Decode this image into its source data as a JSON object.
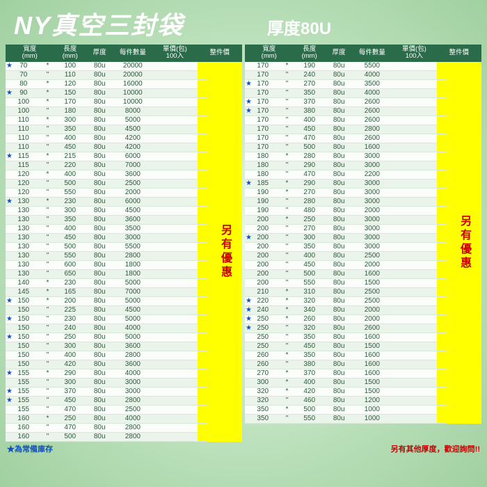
{
  "title": "NY真空三封袋",
  "subtitle": "厚度80U",
  "headers": {
    "width": "寬度\n(mm)",
    "length": "長度\n(mm)",
    "thickness": "厚度",
    "qty": "每件數量",
    "price": "單價(包)\n100入",
    "offer": "整件價"
  },
  "offer_text": "另有優惠",
  "footnote_left": "★為常備庫存",
  "footnote_right": "另有其他厚度，歡迎詢問!!",
  "left_rows": [
    {
      "s": 1,
      "w": "70",
      "l": "100",
      "t": "80u",
      "q": "20000"
    },
    {
      "s": 0,
      "w": "70",
      "l": "110",
      "t": "80u",
      "q": "20000"
    },
    {
      "s": 0,
      "w": "80",
      "l": "120",
      "t": "80u",
      "q": "16000"
    },
    {
      "s": 1,
      "w": "90",
      "l": "150",
      "t": "80u",
      "q": "10000"
    },
    {
      "s": 0,
      "w": "100",
      "l": "170",
      "t": "80u",
      "q": "10000"
    },
    {
      "s": 0,
      "w": "100",
      "l": "180",
      "t": "80u",
      "q": "8000"
    },
    {
      "s": 0,
      "w": "110",
      "l": "300",
      "t": "80u",
      "q": "5000"
    },
    {
      "s": 0,
      "w": "110",
      "l": "350",
      "t": "80u",
      "q": "4500"
    },
    {
      "s": 0,
      "w": "110",
      "l": "400",
      "t": "80u",
      "q": "4200"
    },
    {
      "s": 0,
      "w": "110",
      "l": "450",
      "t": "80u",
      "q": "4200"
    },
    {
      "s": 1,
      "w": "115",
      "l": "215",
      "t": "80u",
      "q": "6000"
    },
    {
      "s": 0,
      "w": "115",
      "l": "220",
      "t": "80u",
      "q": "7000"
    },
    {
      "s": 0,
      "w": "120",
      "l": "400",
      "t": "80u",
      "q": "3600"
    },
    {
      "s": 0,
      "w": "120",
      "l": "500",
      "t": "80u",
      "q": "2500"
    },
    {
      "s": 0,
      "w": "120",
      "l": "550",
      "t": "80u",
      "q": "2000"
    },
    {
      "s": 1,
      "w": "130",
      "l": "230",
      "t": "80u",
      "q": "6000"
    },
    {
      "s": 0,
      "w": "130",
      "l": "300",
      "t": "80u",
      "q": "4500"
    },
    {
      "s": 0,
      "w": "130",
      "l": "350",
      "t": "80u",
      "q": "3600"
    },
    {
      "s": 0,
      "w": "130",
      "l": "400",
      "t": "80u",
      "q": "3500"
    },
    {
      "s": 0,
      "w": "130",
      "l": "450",
      "t": "80u",
      "q": "3000"
    },
    {
      "s": 0,
      "w": "130",
      "l": "500",
      "t": "80u",
      "q": "5500"
    },
    {
      "s": 0,
      "w": "130",
      "l": "550",
      "t": "80u",
      "q": "2800"
    },
    {
      "s": 0,
      "w": "130",
      "l": "600",
      "t": "80u",
      "q": "1800"
    },
    {
      "s": 0,
      "w": "130",
      "l": "650",
      "t": "80u",
      "q": "1800"
    },
    {
      "s": 0,
      "w": "140",
      "l": "230",
      "t": "80u",
      "q": "5000"
    },
    {
      "s": 0,
      "w": "145",
      "l": "165",
      "t": "80u",
      "q": "7000"
    },
    {
      "s": 1,
      "w": "150",
      "l": "200",
      "t": "80u",
      "q": "5000"
    },
    {
      "s": 0,
      "w": "150",
      "l": "225",
      "t": "80u",
      "q": "4500"
    },
    {
      "s": 1,
      "w": "150",
      "l": "230",
      "t": "80u",
      "q": "5000"
    },
    {
      "s": 0,
      "w": "150",
      "l": "240",
      "t": "80u",
      "q": "4000"
    },
    {
      "s": 1,
      "w": "150",
      "l": "250",
      "t": "80u",
      "q": "5000"
    },
    {
      "s": 0,
      "w": "150",
      "l": "300",
      "t": "80u",
      "q": "3600"
    },
    {
      "s": 0,
      "w": "150",
      "l": "400",
      "t": "80u",
      "q": "2800"
    },
    {
      "s": 0,
      "w": "150",
      "l": "420",
      "t": "80u",
      "q": "3600"
    },
    {
      "s": 1,
      "w": "155",
      "l": "290",
      "t": "80u",
      "q": "4000"
    },
    {
      "s": 0,
      "w": "155",
      "l": "300",
      "t": "80u",
      "q": "3000"
    },
    {
      "s": 1,
      "w": "155",
      "l": "370",
      "t": "80u",
      "q": "3000"
    },
    {
      "s": 1,
      "w": "155",
      "l": "450",
      "t": "80u",
      "q": "2800"
    },
    {
      "s": 0,
      "w": "155",
      "l": "470",
      "t": "80u",
      "q": "2500"
    },
    {
      "s": 0,
      "w": "160",
      "l": "250",
      "t": "80u",
      "q": "4000"
    },
    {
      "s": 0,
      "w": "160",
      "l": "470",
      "t": "80u",
      "q": "2800"
    },
    {
      "s": 0,
      "w": "160",
      "l": "500",
      "t": "80u",
      "q": "2800"
    }
  ],
  "right_rows": [
    {
      "s": 0,
      "w": "170",
      "l": "190",
      "t": "80u",
      "q": "5500"
    },
    {
      "s": 0,
      "w": "170",
      "l": "240",
      "t": "80u",
      "q": "4000"
    },
    {
      "s": 1,
      "w": "170",
      "l": "270",
      "t": "80u",
      "q": "3500"
    },
    {
      "s": 0,
      "w": "170",
      "l": "350",
      "t": "80u",
      "q": "4000"
    },
    {
      "s": 1,
      "w": "170",
      "l": "370",
      "t": "80u",
      "q": "2600"
    },
    {
      "s": 1,
      "w": "170",
      "l": "380",
      "t": "80u",
      "q": "2600"
    },
    {
      "s": 0,
      "w": "170",
      "l": "400",
      "t": "80u",
      "q": "2600"
    },
    {
      "s": 0,
      "w": "170",
      "l": "450",
      "t": "80u",
      "q": "2800"
    },
    {
      "s": 0,
      "w": "170",
      "l": "470",
      "t": "80u",
      "q": "2600"
    },
    {
      "s": 0,
      "w": "170",
      "l": "500",
      "t": "80u",
      "q": "1600"
    },
    {
      "s": 0,
      "w": "180",
      "l": "280",
      "t": "80u",
      "q": "3000"
    },
    {
      "s": 0,
      "w": "180",
      "l": "290",
      "t": "80u",
      "q": "3000"
    },
    {
      "s": 0,
      "w": "180",
      "l": "470",
      "t": "80u",
      "q": "2200"
    },
    {
      "s": 1,
      "w": "185",
      "l": "290",
      "t": "80u",
      "q": "3000"
    },
    {
      "s": 0,
      "w": "190",
      "l": "270",
      "t": "80u",
      "q": "3000"
    },
    {
      "s": 0,
      "w": "190",
      "l": "280",
      "t": "80u",
      "q": "3000"
    },
    {
      "s": 0,
      "w": "190",
      "l": "480",
      "t": "80u",
      "q": "2000"
    },
    {
      "s": 0,
      "w": "200",
      "l": "250",
      "t": "80u",
      "q": "3000"
    },
    {
      "s": 0,
      "w": "200",
      "l": "270",
      "t": "80u",
      "q": "3000"
    },
    {
      "s": 1,
      "w": "200",
      "l": "300",
      "t": "80u",
      "q": "3000"
    },
    {
      "s": 0,
      "w": "200",
      "l": "350",
      "t": "80u",
      "q": "3000"
    },
    {
      "s": 0,
      "w": "200",
      "l": "400",
      "t": "80u",
      "q": "2500"
    },
    {
      "s": 0,
      "w": "200",
      "l": "450",
      "t": "80u",
      "q": "2000"
    },
    {
      "s": 0,
      "w": "200",
      "l": "500",
      "t": "80u",
      "q": "1600"
    },
    {
      "s": 0,
      "w": "200",
      "l": "550",
      "t": "80u",
      "q": "1500"
    },
    {
      "s": 0,
      "w": "210",
      "l": "310",
      "t": "80u",
      "q": "2500"
    },
    {
      "s": 1,
      "w": "220",
      "l": "320",
      "t": "80u",
      "q": "2500"
    },
    {
      "s": 1,
      "w": "240",
      "l": "340",
      "t": "80u",
      "q": "2000"
    },
    {
      "s": 1,
      "w": "250",
      "l": "260",
      "t": "80u",
      "q": "2000"
    },
    {
      "s": 1,
      "w": "250",
      "l": "320",
      "t": "80u",
      "q": "2600"
    },
    {
      "s": 0,
      "w": "250",
      "l": "350",
      "t": "80u",
      "q": "1600"
    },
    {
      "s": 0,
      "w": "250",
      "l": "450",
      "t": "80u",
      "q": "1500"
    },
    {
      "s": 0,
      "w": "260",
      "l": "350",
      "t": "80u",
      "q": "1600"
    },
    {
      "s": 0,
      "w": "260",
      "l": "380",
      "t": "80u",
      "q": "1600"
    },
    {
      "s": 0,
      "w": "270",
      "l": "370",
      "t": "80u",
      "q": "1600"
    },
    {
      "s": 0,
      "w": "300",
      "l": "400",
      "t": "80u",
      "q": "1500"
    },
    {
      "s": 0,
      "w": "320",
      "l": "420",
      "t": "80u",
      "q": "1500"
    },
    {
      "s": 0,
      "w": "320",
      "l": "460",
      "t": "80u",
      "q": "1200"
    },
    {
      "s": 0,
      "w": "350",
      "l": "500",
      "t": "80u",
      "q": "1000"
    },
    {
      "s": 0,
      "w": "350",
      "l": "550",
      "t": "80u",
      "q": "1000"
    }
  ]
}
